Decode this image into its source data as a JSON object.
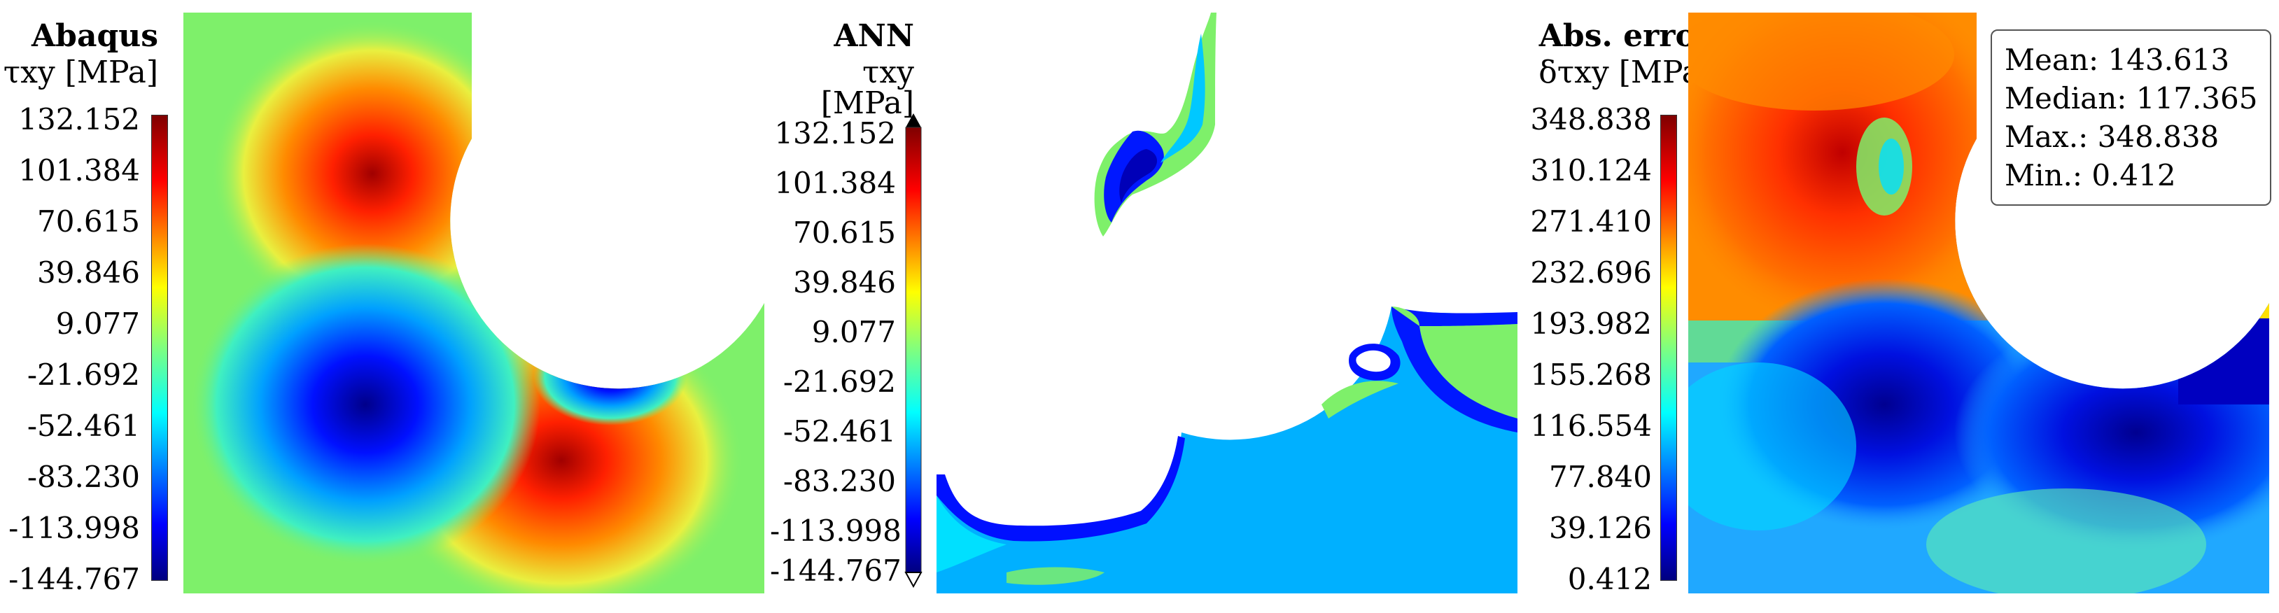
{
  "panels": [
    {
      "id": "abaqus",
      "title": "Abaqus",
      "quantity": "τxy [MPa]",
      "ticks": [
        "132.152",
        "101.384",
        "70.615",
        "39.846",
        "9.077",
        "-21.692",
        "-52.461",
        "-83.230",
        "-113.998",
        "-144.767"
      ]
    },
    {
      "id": "ann",
      "title": "ANN",
      "quantity": "τxy [MPa]",
      "ticks": [
        "132.152",
        "101.384",
        "70.615",
        "39.846",
        "9.077",
        "-21.692",
        "-52.461",
        "-83.230",
        "-113.998",
        "-144.767"
      ]
    },
    {
      "id": "error",
      "title": "Abs. error",
      "quantity": "δτxy [MPa]",
      "ticks": [
        "348.838",
        "310.124",
        "271.410",
        "232.696",
        "193.982",
        "155.268",
        "116.554",
        "77.840",
        "39.126",
        "0.412"
      ]
    }
  ],
  "stats": {
    "mean": "Mean: 143.613",
    "median": "Median: 117.365",
    "max": "Max.: 348.838",
    "min": "Min.: 0.412"
  },
  "colors": {
    "jet": [
      "#00007f",
      "#0000ff",
      "#007fff",
      "#00ffff",
      "#7fff7f",
      "#ffff00",
      "#ff7f00",
      "#ff0000",
      "#7f0000"
    ],
    "ann_background": "#00b0ff",
    "abaqus_background": "#7ef06a"
  }
}
